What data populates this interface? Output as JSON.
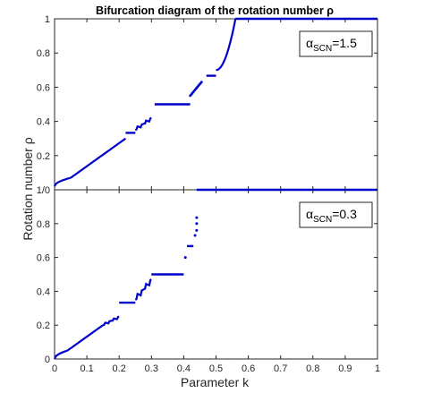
{
  "chart_data": {
    "title": "Bifurcation diagram of the rotation number ρ",
    "xlabel": "Parameter k",
    "ylabel": "Rotation number ρ",
    "series_color": "#0000cc",
    "x_tick_labels": [
      "0",
      "0.1",
      "0.2",
      "0.3",
      "0.4",
      "0.5",
      "0.6",
      "0.7",
      "0.8",
      "0.9",
      "1"
    ],
    "panels": [
      {
        "type": "scatter",
        "legend": "α_SCN=1.5",
        "legend_symbol": "α",
        "legend_sub": "SCN",
        "legend_value": "=1.5",
        "xlim": [
          0,
          1
        ],
        "ylim": [
          0,
          1
        ],
        "y_tick_values": [
          0.2,
          0.4,
          0.6,
          0.8,
          1
        ],
        "y_tick_labels": [
          "0.2",
          "0.4",
          "0.6",
          "0.8",
          "1"
        ],
        "segments": [
          {
            "x": [
              0.0,
              0.05
            ],
            "y": [
              0.02,
              0.07
            ],
            "shape": "curve"
          },
          {
            "x": [
              0.05,
              0.22
            ],
            "y": [
              0.07,
              0.3
            ],
            "shape": "linear"
          },
          {
            "x": [
              0.22,
              0.25
            ],
            "y": [
              0.333,
              0.333
            ],
            "shape": "flat"
          },
          {
            "x": [
              0.25,
              0.3
            ],
            "y": [
              0.35,
              0.42
            ],
            "shape": "staircase"
          },
          {
            "x": [
              0.31,
              0.42
            ],
            "y": [
              0.5,
              0.5
            ],
            "shape": "flat"
          },
          {
            "x": [
              0.42,
              0.455
            ],
            "y": [
              0.55,
              0.63
            ],
            "shape": "scatter"
          },
          {
            "x": [
              0.47,
              0.5
            ],
            "y": [
              0.667,
              0.667
            ],
            "shape": "flat"
          },
          {
            "x": [
              0.5,
              0.56
            ],
            "y": [
              0.7,
              1.0
            ],
            "shape": "convex"
          },
          {
            "x": [
              0.56,
              1.0
            ],
            "y": [
              1.0,
              1.0
            ],
            "shape": "flat"
          }
        ]
      },
      {
        "type": "scatter",
        "legend": "α_SCN=0.3",
        "legend_symbol": "α",
        "legend_sub": "SCN",
        "legend_value": "=0.3",
        "xlim": [
          0,
          1
        ],
        "ylim": [
          0,
          1
        ],
        "y_tick_values": [
          0,
          0.2,
          0.4,
          0.6,
          0.8
        ],
        "y_tick_labels": [
          "0",
          "0.2",
          "0.4",
          "0.6",
          "0.8"
        ],
        "top_label": "1/0",
        "segments": [
          {
            "x": [
              0.0,
              0.04
            ],
            "y": [
              0.0,
              0.05
            ],
            "shape": "curve"
          },
          {
            "x": [
              0.04,
              0.15
            ],
            "y": [
              0.05,
              0.2
            ],
            "shape": "linear"
          },
          {
            "x": [
              0.15,
              0.2
            ],
            "y": [
              0.2,
              0.25
            ],
            "shape": "staircase"
          },
          {
            "x": [
              0.2,
              0.25
            ],
            "y": [
              0.333,
              0.333
            ],
            "shape": "flat"
          },
          {
            "x": [
              0.25,
              0.3
            ],
            "y": [
              0.35,
              0.47
            ],
            "shape": "staircase"
          },
          {
            "x": [
              0.3,
              0.4
            ],
            "y": [
              0.5,
              0.5
            ],
            "shape": "flat"
          },
          {
            "x": [
              0.41,
              0.43
            ],
            "y": [
              0.667,
              0.667
            ],
            "shape": "flat"
          },
          {
            "x": [
              0.44,
              1.0
            ],
            "y": [
              1.0,
              1.0
            ],
            "shape": "flat"
          }
        ],
        "points": [
          {
            "x": 0.405,
            "y": 0.6
          },
          {
            "x": 0.435,
            "y": 0.73
          },
          {
            "x": 0.44,
            "y": 0.76
          },
          {
            "x": 0.44,
            "y": 0.8
          },
          {
            "x": 0.44,
            "y": 0.835
          }
        ]
      }
    ]
  }
}
